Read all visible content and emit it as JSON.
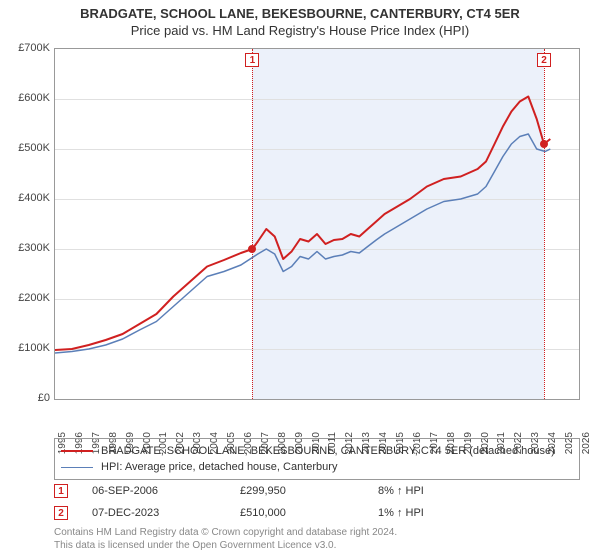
{
  "title": "BRADGATE, SCHOOL LANE, BEKESBOURNE, CANTERBURY, CT4 5ER",
  "subtitle": "Price paid vs. HM Land Registry's House Price Index (HPI)",
  "chart": {
    "type": "line",
    "background_color": "#ffffff",
    "grid_color": "#e0e0e0",
    "border_color": "#999999",
    "shaded_fill": "rgba(200,215,240,0.35)",
    "x_years": [
      1995,
      1996,
      1997,
      1998,
      1999,
      2000,
      2001,
      2002,
      2003,
      2004,
      2005,
      2006,
      2007,
      2008,
      2009,
      2010,
      2011,
      2012,
      2013,
      2014,
      2015,
      2016,
      2017,
      2018,
      2019,
      2020,
      2021,
      2022,
      2023,
      2024,
      2025,
      2026
    ],
    "y_ticks": [
      0,
      100,
      200,
      300,
      400,
      500,
      600,
      700
    ],
    "y_tick_labels": [
      "£0",
      "£100K",
      "£200K",
      "£300K",
      "£400K",
      "£500K",
      "£600K",
      "£700K"
    ],
    "ylim": [
      0,
      700
    ],
    "xlim": [
      1995,
      2026
    ],
    "series": [
      {
        "key": "red",
        "label": "BRADGATE, SCHOOL LANE, BEKESBOURNE, CANTERBURY, CT4 5ER (detached house)",
        "color": "#d02020",
        "line_width": 2,
        "points": [
          [
            1995,
            98
          ],
          [
            1996,
            100
          ],
          [
            1997,
            108
          ],
          [
            1998,
            118
          ],
          [
            1999,
            130
          ],
          [
            2000,
            150
          ],
          [
            2001,
            170
          ],
          [
            2002,
            205
          ],
          [
            2003,
            235
          ],
          [
            2004,
            265
          ],
          [
            2005,
            278
          ],
          [
            2006,
            292
          ],
          [
            2006.68,
            300
          ],
          [
            2007,
            315
          ],
          [
            2007.5,
            340
          ],
          [
            2008,
            325
          ],
          [
            2008.5,
            280
          ],
          [
            2009,
            295
          ],
          [
            2009.5,
            320
          ],
          [
            2010,
            315
          ],
          [
            2010.5,
            330
          ],
          [
            2011,
            310
          ],
          [
            2011.5,
            318
          ],
          [
            2012,
            320
          ],
          [
            2012.5,
            330
          ],
          [
            2013,
            325
          ],
          [
            2013.5,
            340
          ],
          [
            2014,
            355
          ],
          [
            2014.5,
            370
          ],
          [
            2015,
            380
          ],
          [
            2016,
            400
          ],
          [
            2017,
            425
          ],
          [
            2018,
            440
          ],
          [
            2019,
            445
          ],
          [
            2020,
            460
          ],
          [
            2020.5,
            475
          ],
          [
            2021,
            510
          ],
          [
            2021.5,
            545
          ],
          [
            2022,
            575
          ],
          [
            2022.5,
            595
          ],
          [
            2023,
            605
          ],
          [
            2023.5,
            560
          ],
          [
            2023.93,
            510
          ],
          [
            2024.3,
            520
          ]
        ]
      },
      {
        "key": "blue",
        "label": "HPI: Average price, detached house, Canterbury",
        "color": "#5b7fb8",
        "line_width": 1.5,
        "points": [
          [
            1995,
            92
          ],
          [
            1996,
            95
          ],
          [
            1997,
            100
          ],
          [
            1998,
            108
          ],
          [
            1999,
            120
          ],
          [
            2000,
            138
          ],
          [
            2001,
            155
          ],
          [
            2002,
            185
          ],
          [
            2003,
            215
          ],
          [
            2004,
            245
          ],
          [
            2005,
            255
          ],
          [
            2006,
            268
          ],
          [
            2007,
            290
          ],
          [
            2007.5,
            300
          ],
          [
            2008,
            290
          ],
          [
            2008.5,
            255
          ],
          [
            2009,
            265
          ],
          [
            2009.5,
            285
          ],
          [
            2010,
            280
          ],
          [
            2010.5,
            295
          ],
          [
            2011,
            280
          ],
          [
            2011.5,
            285
          ],
          [
            2012,
            288
          ],
          [
            2012.5,
            295
          ],
          [
            2013,
            292
          ],
          [
            2013.5,
            305
          ],
          [
            2014,
            318
          ],
          [
            2014.5,
            330
          ],
          [
            2015,
            340
          ],
          [
            2016,
            360
          ],
          [
            2017,
            380
          ],
          [
            2018,
            395
          ],
          [
            2019,
            400
          ],
          [
            2020,
            410
          ],
          [
            2020.5,
            425
          ],
          [
            2021,
            455
          ],
          [
            2021.5,
            485
          ],
          [
            2022,
            510
          ],
          [
            2022.5,
            525
          ],
          [
            2023,
            530
          ],
          [
            2023.5,
            500
          ],
          [
            2024,
            495
          ],
          [
            2024.3,
            500
          ]
        ]
      }
    ],
    "marker_lines": [
      {
        "id": "1",
        "x": 2006.68,
        "y": 300
      },
      {
        "id": "2",
        "x": 2023.93,
        "y": 510
      }
    ],
    "data_dot_color": "#d02020"
  },
  "marker_rows": [
    {
      "id": "1",
      "date": "06-SEP-2006",
      "price": "£299,950",
      "delta": "8% ↑ HPI"
    },
    {
      "id": "2",
      "date": "07-DEC-2023",
      "price": "£510,000",
      "delta": "1% ↑ HPI"
    }
  ],
  "footer": {
    "line1": "Contains HM Land Registry data © Crown copyright and database right 2024.",
    "line2": "This data is licensed under the Open Government Licence v3.0."
  },
  "legend_swatch_width": 32,
  "fonts": {
    "title_size": 13,
    "subtitle_size": 13,
    "tick_size": 11,
    "legend_size": 11,
    "footer_size": 10
  }
}
